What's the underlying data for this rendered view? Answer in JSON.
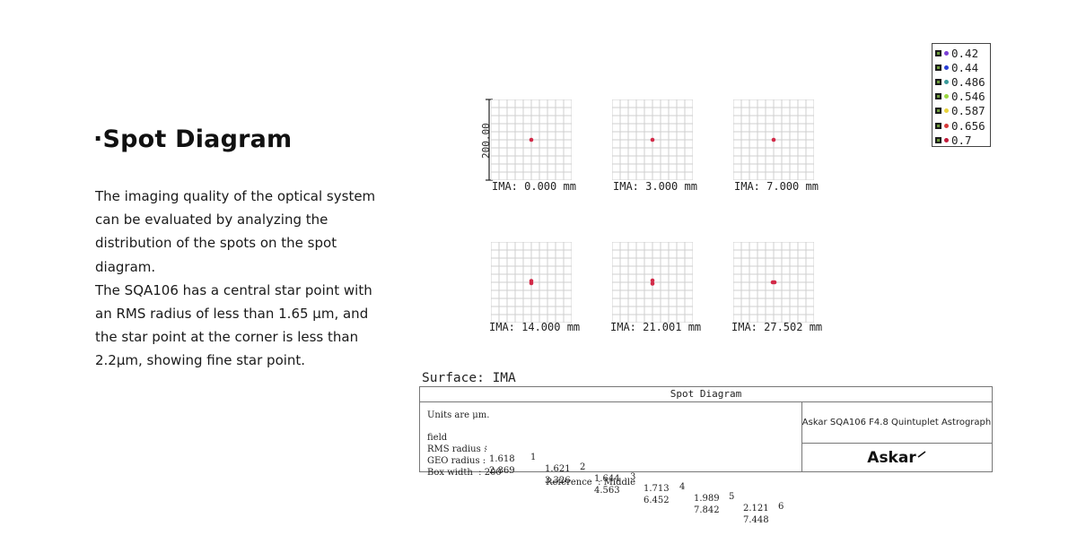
{
  "heading": "·Spot Diagram",
  "description": [
    "The imaging quality of the optical system can be evaluated by analyzing the distribution of the spots on the spot diagram.",
    "The SQA106 has a central star point with an RMS radius of less than 1.65 μm, and the star point at the corner is less than 2.2μm, showing fine star point."
  ],
  "scale_label": "200.00",
  "fields": [
    {
      "label": "IMA: 0.000 mm"
    },
    {
      "label": "IMA: 3.000 mm"
    },
    {
      "label": "IMA: 7.000 mm"
    },
    {
      "label": "IMA: 14.000 mm"
    },
    {
      "label": "IMA: 21.001 mm"
    },
    {
      "label": "IMA: 27.502 mm"
    }
  ],
  "legend": [
    {
      "label": "0.42",
      "color": "#7b3fd6"
    },
    {
      "label": "0.44",
      "color": "#2a3fd6"
    },
    {
      "label": "0.486",
      "color": "#3a9a9a"
    },
    {
      "label": "0.546",
      "color": "#9ad640"
    },
    {
      "label": "0.587",
      "color": "#e8d23a"
    },
    {
      "label": "0.656",
      "color": "#d63a3a"
    },
    {
      "label": "0.7",
      "color": "#c01a3a"
    }
  ],
  "spot_color": "#d22a48",
  "surface": "Surface: IMA",
  "table": {
    "header": "Spot Diagram",
    "units": "Units are μm.",
    "field_label": "field",
    "field_values": [
      "1",
      "2",
      "3",
      "4",
      "5",
      "6"
    ],
    "rms_label": "RMS radius :",
    "rms_values": [
      "1.618",
      "1.621",
      "1.644",
      "1.713",
      "1.989",
      "2.121"
    ],
    "geo_label": "GEO radius :",
    "geo_values": [
      "2.869",
      "3.326",
      "4.563",
      "6.452",
      "7.842",
      "7.448"
    ],
    "box_width": "Box width  : 200",
    "reference": "Reference  : Middle",
    "product": "Askar SQA106 F4.8 Quintuplet Astrograph",
    "brand": "Askar"
  }
}
